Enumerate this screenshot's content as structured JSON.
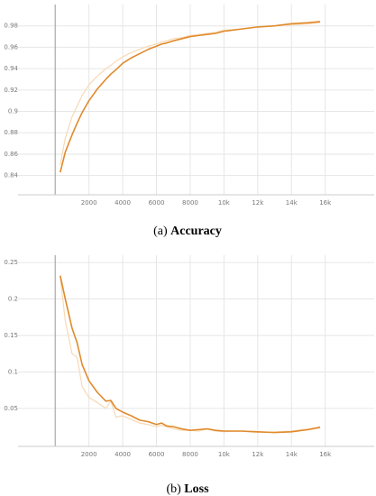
{
  "chart_data": [
    {
      "type": "line",
      "caption_label": "(a)",
      "caption": "Accuracy",
      "x": [
        300,
        600,
        1000,
        1300,
        1600,
        2000,
        2500,
        3000,
        3300,
        3600,
        4000,
        4500,
        5000,
        5500,
        6000,
        6300,
        6600,
        7000,
        7500,
        8000,
        8500,
        9000,
        9500,
        10000,
        11000,
        12000,
        13000,
        14000,
        15000,
        15700
      ],
      "series": [
        {
          "color": "#f7d9b4",
          "values": [
            0.85,
            0.875,
            0.895,
            0.905,
            0.915,
            0.925,
            0.933,
            0.94,
            0.943,
            0.947,
            0.951,
            0.955,
            0.958,
            0.961,
            0.963,
            0.965,
            0.966,
            0.968,
            0.969,
            0.971,
            0.972,
            0.973,
            0.974,
            0.976,
            0.977,
            0.979,
            0.98,
            0.981,
            0.982,
            0.983
          ]
        },
        {
          "color": "#e08a2c",
          "values": [
            0.843,
            0.862,
            0.878,
            0.889,
            0.899,
            0.91,
            0.921,
            0.93,
            0.935,
            0.939,
            0.945,
            0.95,
            0.954,
            0.958,
            0.961,
            0.963,
            0.964,
            0.966,
            0.968,
            0.97,
            0.971,
            0.972,
            0.973,
            0.975,
            0.977,
            0.979,
            0.98,
            0.982,
            0.983,
            0.984
          ]
        }
      ],
      "xlim": [
        -2200,
        18900
      ],
      "ylim": [
        0.822,
        1.0
      ],
      "xticks": [
        2000,
        4000,
        6000,
        8000,
        {
          "value": 10000,
          "label": "10k"
        },
        {
          "value": 12000,
          "label": "12k"
        },
        {
          "value": 14000,
          "label": "14k"
        },
        {
          "value": 16000,
          "label": "16k"
        }
      ],
      "yticks": [
        0.84,
        0.86,
        0.88,
        0.9,
        0.92,
        0.94,
        0.96,
        0.98
      ],
      "grid": true
    },
    {
      "type": "line",
      "caption_label": "(b)",
      "caption": "Loss",
      "x": [
        300,
        600,
        1000,
        1300,
        1600,
        2000,
        2500,
        3000,
        3300,
        3600,
        4000,
        4500,
        5000,
        5500,
        6000,
        6300,
        6600,
        7000,
        7500,
        8000,
        8500,
        9000,
        9500,
        10000,
        11000,
        12000,
        13000,
        14000,
        15000,
        15700
      ],
      "series": [
        {
          "color": "#f7d9b4",
          "values": [
            0.23,
            0.17,
            0.125,
            0.12,
            0.08,
            0.065,
            0.058,
            0.05,
            0.06,
            0.038,
            0.04,
            0.035,
            0.03,
            0.028,
            0.025,
            0.027,
            0.025,
            0.022,
            0.02,
            0.02,
            0.019,
            0.022,
            0.019,
            0.018,
            0.019,
            0.017,
            0.018,
            0.019,
            0.022,
            0.025
          ]
        },
        {
          "color": "#e08a2c",
          "values": [
            0.232,
            0.2,
            0.16,
            0.14,
            0.11,
            0.088,
            0.072,
            0.06,
            0.061,
            0.05,
            0.045,
            0.04,
            0.034,
            0.032,
            0.028,
            0.03,
            0.026,
            0.025,
            0.022,
            0.02,
            0.021,
            0.022,
            0.02,
            0.019,
            0.019,
            0.018,
            0.017,
            0.018,
            0.021,
            0.024
          ]
        }
      ],
      "xlim": [
        -2200,
        18900
      ],
      "ylim": [
        -0.002,
        0.26
      ],
      "xticks": [
        2000,
        4000,
        6000,
        8000,
        {
          "value": 10000,
          "label": "10k"
        },
        {
          "value": 12000,
          "label": "12k"
        },
        {
          "value": 14000,
          "label": "14k"
        },
        {
          "value": 16000,
          "label": "16k"
        }
      ],
      "yticks": [
        0.05,
        0.1,
        0.15,
        0.2,
        0.25
      ],
      "grid": true
    }
  ]
}
